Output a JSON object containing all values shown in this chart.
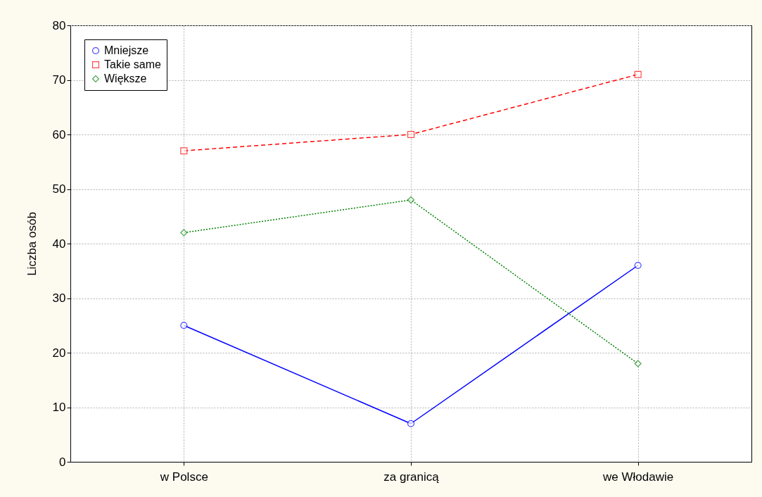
{
  "chart_data": {
    "type": "line",
    "ylabel": "Liczba osób",
    "categories": [
      "w Polsce",
      "za granicą",
      "we Włodawie"
    ],
    "series": [
      {
        "name": "Mniejsze",
        "color": "#0000ff",
        "marker": "circle",
        "line_style": "solid",
        "values": [
          25,
          7,
          36
        ]
      },
      {
        "name": "Takie same",
        "color": "#ff0000",
        "marker": "square",
        "line_style": "dashed",
        "values": [
          57,
          60,
          71
        ]
      },
      {
        "name": "Większe",
        "color": "#008000",
        "marker": "diamond",
        "line_style": "dotted",
        "values": [
          42,
          48,
          18
        ]
      }
    ],
    "ylim": [
      0,
      80
    ],
    "yticks": [
      0,
      10,
      20,
      30,
      40,
      50,
      60,
      70,
      80
    ],
    "grid": true,
    "legend": "top left"
  }
}
